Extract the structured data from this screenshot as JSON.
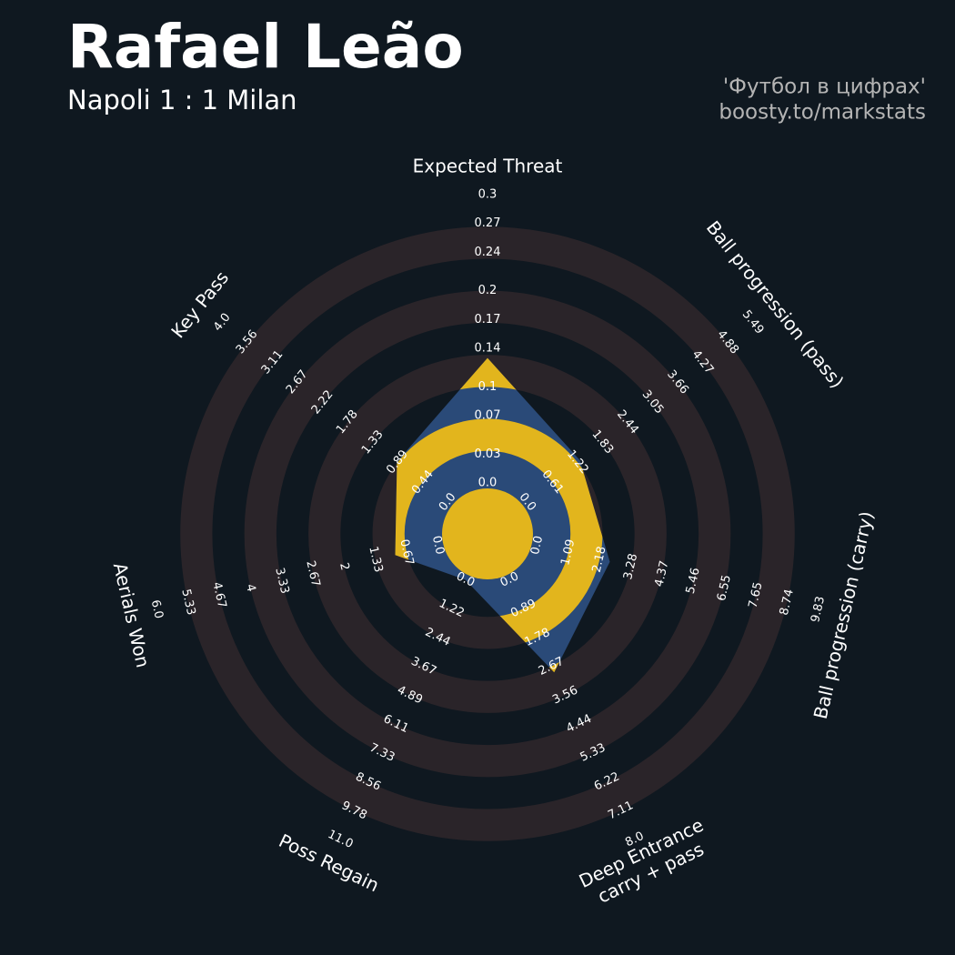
{
  "chart_data": {
    "type": "radar",
    "title": "Rafael Leão",
    "subtitle": "Napoli 1 : 1 Milan",
    "credits": [
      "'Футбол в цифрах'",
      "boosty.to/markstats"
    ],
    "params": [
      [
        "Expected Threat"
      ],
      [
        "Ball progression (pass)"
      ],
      [
        "Ball progression (carry)"
      ],
      [
        "Deep Entrance",
        "carry + pass"
      ],
      [
        "Poss Regain"
      ],
      [
        "Aerials Won"
      ],
      [
        "Key Pass"
      ]
    ],
    "ranges": [
      [
        0,
        0.3
      ],
      [
        0,
        5.49
      ],
      [
        0,
        9.83
      ],
      [
        0,
        8
      ],
      [
        0,
        11
      ],
      [
        0,
        6
      ],
      [
        0,
        4
      ]
    ],
    "ticks": [
      [
        {
          "value": 0,
          "label": "0.0"
        },
        0.03,
        0.07,
        0.1,
        0.14,
        0.17,
        0.2,
        0.24,
        0.27,
        0.3
      ],
      [
        {
          "value": 0,
          "label": "0.0"
        },
        0.61,
        1.22,
        1.83,
        2.44,
        3.05,
        3.66,
        4.27,
        4.88,
        5.49
      ],
      [
        {
          "value": 0,
          "label": "0.0"
        },
        1.09,
        2.18,
        3.28,
        4.37,
        5.46,
        6.55,
        7.65,
        8.74,
        9.83
      ],
      [
        {
          "value": 0,
          "label": "0.0"
        },
        0.89,
        1.78,
        2.67,
        3.56,
        4.44,
        5.33,
        6.22,
        7.11,
        {
          "value": 8,
          "label": "8.0"
        }
      ],
      [
        {
          "value": 0,
          "label": "0.0"
        },
        1.22,
        2.44,
        3.67,
        4.89,
        6.11,
        7.33,
        8.56,
        9.78,
        {
          "value": 11,
          "label": "11.0"
        }
      ],
      [
        {
          "value": 0,
          "label": "0.0"
        },
        0.67,
        1.33,
        2.0,
        2.67,
        3.33,
        4.0,
        4.67,
        5.33,
        {
          "value": 6,
          "label": "6.0"
        }
      ],
      [
        {
          "value": 0,
          "label": "0.0"
        },
        0.44,
        0.89,
        1.33,
        1.78,
        2.22,
        2.67,
        3.11,
        3.56,
        {
          "value": 4,
          "label": "4.0"
        }
      ]
    ],
    "values": [
      0.13,
      1.28,
      2.54,
      2.85,
      0.0,
      0.91,
      0.9
    ],
    "color": "#2a4a78",
    "ring_color": "#2a2429",
    "highlight_color": "#e2b51d"
  }
}
